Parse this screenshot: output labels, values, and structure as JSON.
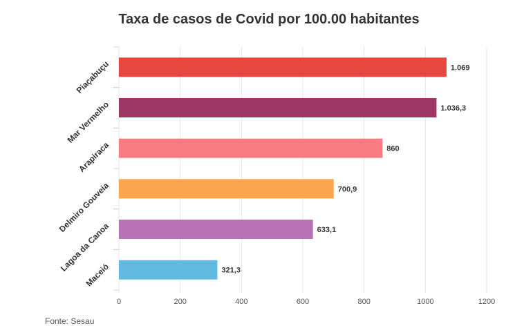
{
  "chart_data": {
    "type": "bar",
    "orientation": "horizontal",
    "title": "Taxa de casos de Covid por 100.00 habitantes",
    "source": "Fonte: Sesau",
    "categories": [
      "Piaçabuçu",
      "Mar Vermelho",
      "Arapiraca",
      "Delmiro Gouveia",
      "Lagoa da Canoa",
      "Maceió"
    ],
    "values": [
      1069,
      1036.3,
      860,
      700.9,
      633.1,
      321.3
    ],
    "value_labels": [
      "1.069",
      "1.036,3",
      "860",
      "700,9",
      "633,1",
      "321,3"
    ],
    "colors": [
      "#e8473f",
      "#9c3764",
      "#f87b84",
      "#fda54c",
      "#b873b6",
      "#62bae0"
    ],
    "xlim": [
      0,
      1200
    ],
    "xticks": [
      0,
      200,
      400,
      600,
      800,
      1000,
      1200
    ],
    "grid": true,
    "legend": "none"
  }
}
